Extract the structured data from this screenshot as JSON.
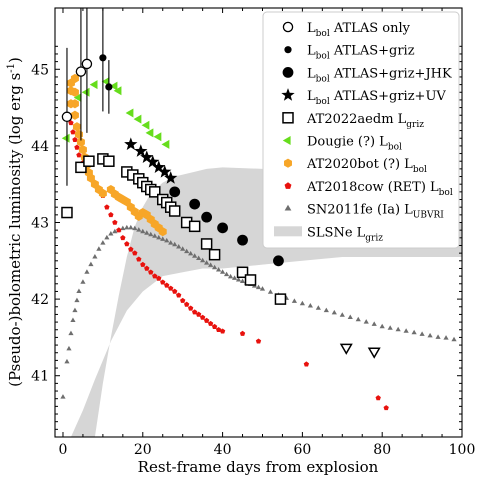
{
  "chart_data": {
    "type": "scatter",
    "xlabel": "Rest-frame days from explosion",
    "ylabel": "(Pseudo-)bolometric luminosity (log erg s⁻¹)",
    "xlim": [
      -2,
      100
    ],
    "ylim": [
      40.2,
      45.8
    ],
    "xticks": [
      0,
      20,
      40,
      60,
      80,
      100
    ],
    "yticks": [
      41,
      42,
      43,
      44,
      45
    ],
    "legend_position": "top-right",
    "band": {
      "name": "SLSNe L_griz",
      "color": "#d6d6d6",
      "lower": [
        [
          2,
          40.2
        ],
        [
          5,
          40.55
        ],
        [
          8,
          40.95
        ],
        [
          12,
          41.45
        ],
        [
          16,
          41.85
        ],
        [
          20,
          42.1
        ],
        [
          25,
          42.3
        ],
        [
          30,
          42.35
        ],
        [
          35,
          42.4
        ],
        [
          40,
          42.4
        ],
        [
          50,
          42.45
        ],
        [
          60,
          42.5
        ],
        [
          70,
          42.55
        ],
        [
          80,
          42.55
        ],
        [
          90,
          42.55
        ],
        [
          100,
          42.55
        ]
      ],
      "upper": [
        [
          8,
          40.2
        ],
        [
          10,
          40.9
        ],
        [
          12,
          41.5
        ],
        [
          14,
          42.05
        ],
        [
          16,
          42.55
        ],
        [
          18,
          42.95
        ],
        [
          20,
          43.2
        ],
        [
          22,
          43.38
        ],
        [
          25,
          43.52
        ],
        [
          28,
          43.6
        ],
        [
          32,
          43.65
        ],
        [
          36,
          43.7
        ],
        [
          40,
          43.72
        ],
        [
          50,
          43.7
        ],
        [
          60,
          43.6
        ],
        [
          70,
          43.45
        ],
        [
          80,
          43.3
        ],
        [
          90,
          43.15
        ],
        [
          100,
          43.0
        ]
      ]
    },
    "series": [
      {
        "name": "ATLAS only",
        "marker": "open-circle",
        "color": "#000000",
        "points": [
          [
            1,
            44.38
          ],
          [
            4.5,
            44.97
          ],
          [
            6,
            45.07
          ]
        ],
        "errors": [
          [
            0.9
          ],
          [
            0.9
          ],
          [
            0.9
          ]
        ]
      },
      {
        "name": "ATLAS+griz",
        "marker": "filled-circle-small",
        "color": "#000000",
        "points": [
          [
            10,
            45.15
          ],
          [
            11.5,
            44.77
          ]
        ],
        "errors": [
          [
            0.7
          ],
          [
            0.35
          ]
        ]
      },
      {
        "name": "ATLAS+griz+JHK",
        "marker": "filled-circle-large",
        "color": "#000000",
        "points": [
          [
            28,
            43.4
          ],
          [
            33,
            43.24
          ],
          [
            36,
            43.07
          ],
          [
            40,
            42.93
          ],
          [
            45,
            42.77
          ],
          [
            54,
            42.5
          ]
        ]
      },
      {
        "name": "ATLAS+griz+UV",
        "marker": "star",
        "color": "#000000",
        "points": [
          [
            17,
            44.02
          ],
          [
            19.5,
            43.93
          ],
          [
            21,
            43.85
          ],
          [
            22.5,
            43.79
          ],
          [
            24,
            43.72
          ],
          [
            25.5,
            43.66
          ],
          [
            27,
            43.58
          ]
        ]
      },
      {
        "name": "AT2022aedm L_griz",
        "marker": "open-square",
        "color": "#000000",
        "points": [
          [
            1,
            43.13
          ],
          [
            4.5,
            43.72
          ],
          [
            6.5,
            43.8
          ],
          [
            10,
            43.83
          ],
          [
            11.5,
            43.8
          ],
          [
            16,
            43.66
          ],
          [
            17.5,
            43.62
          ],
          [
            19,
            43.57
          ],
          [
            20,
            43.52
          ],
          [
            21,
            43.47
          ],
          [
            22,
            43.43
          ],
          [
            23,
            43.4
          ],
          [
            25,
            43.3
          ],
          [
            26,
            43.26
          ],
          [
            27,
            43.2
          ],
          [
            28,
            43.15
          ],
          [
            31,
            43.0
          ],
          [
            33,
            42.95
          ],
          [
            36,
            42.72
          ],
          [
            38,
            42.58
          ],
          [
            45,
            42.35
          ],
          [
            47,
            42.25
          ],
          [
            54.5,
            42.0
          ]
        ],
        "upper_limits": [
          [
            71,
            41.37
          ],
          [
            78,
            41.32
          ]
        ]
      },
      {
        "name": "Dougie (?) L_bol",
        "marker": "triangle-left",
        "color": "#66dd1c",
        "points": [
          [
            1,
            44.1
          ],
          [
            4,
            44.63
          ],
          [
            6,
            44.7
          ],
          [
            8,
            44.8
          ],
          [
            11,
            44.84
          ],
          [
            13,
            44.78
          ],
          [
            14,
            44.72
          ],
          [
            17,
            44.43
          ],
          [
            19,
            44.35
          ],
          [
            21,
            44.27
          ],
          [
            22,
            44.17
          ],
          [
            24,
            44.12
          ],
          [
            26,
            44.02
          ]
        ]
      },
      {
        "name": "AT2020bot (?) L_bol",
        "marker": "hexagon",
        "color": "#f7a628",
        "points": [
          [
            2,
            44.82
          ],
          [
            2,
            44.72
          ],
          [
            3,
            44.88
          ],
          [
            3,
            44.7
          ],
          [
            3,
            44.55
          ],
          [
            2,
            44.55
          ],
          [
            3,
            44.4
          ],
          [
            3.5,
            44.25
          ],
          [
            4,
            44.15
          ],
          [
            4.5,
            44.05
          ],
          [
            5,
            43.95
          ],
          [
            5.5,
            43.85
          ],
          [
            6,
            43.75
          ],
          [
            6.5,
            43.65
          ],
          [
            7,
            43.58
          ],
          [
            8,
            43.5
          ],
          [
            9,
            43.43
          ],
          [
            10,
            43.38
          ],
          [
            12,
            43.43
          ],
          [
            13,
            43.37
          ],
          [
            14,
            43.33
          ],
          [
            15,
            43.3
          ],
          [
            16,
            43.27
          ],
          [
            17,
            43.2
          ],
          [
            18,
            43.14
          ],
          [
            19,
            43.08
          ],
          [
            20,
            43.13
          ],
          [
            21,
            43.1
          ],
          [
            22,
            43.04
          ],
          [
            23,
            42.98
          ],
          [
            24,
            42.93
          ],
          [
            25,
            42.88
          ]
        ]
      },
      {
        "name": "AT2018cow (RET) L_bol",
        "marker": "pentagon",
        "color": "#e8120e",
        "points": [
          [
            1.5,
            44.4
          ],
          [
            2,
            44.3
          ],
          [
            2.5,
            44.18
          ],
          [
            3,
            44.08
          ],
          [
            3.5,
            43.98
          ],
          [
            4,
            43.88
          ],
          [
            5,
            43.78
          ],
          [
            6,
            43.68
          ],
          [
            7,
            43.6
          ],
          [
            8,
            43.5
          ],
          [
            9,
            43.42
          ],
          [
            10,
            43.35
          ],
          [
            11,
            43.2
          ],
          [
            12,
            43.1
          ],
          [
            13,
            43.0
          ],
          [
            14,
            42.9
          ],
          [
            15,
            42.8
          ],
          [
            16,
            42.72
          ],
          [
            17,
            42.65
          ],
          [
            18,
            42.6
          ],
          [
            19,
            42.52
          ],
          [
            20,
            42.45
          ],
          [
            21,
            42.4
          ],
          [
            22,
            42.35
          ],
          [
            23,
            42.3
          ],
          [
            24,
            42.27
          ],
          [
            25,
            42.22
          ],
          [
            26,
            42.18
          ],
          [
            27,
            42.14
          ],
          [
            28,
            42.1
          ],
          [
            29,
            42.05
          ],
          [
            30,
            41.98
          ],
          [
            31,
            41.93
          ],
          [
            32,
            41.88
          ],
          [
            33,
            41.83
          ],
          [
            34,
            41.8
          ],
          [
            35,
            41.76
          ],
          [
            36,
            41.72
          ],
          [
            37,
            41.68
          ],
          [
            38,
            41.64
          ],
          [
            39,
            41.6
          ],
          [
            40,
            41.58
          ],
          [
            45,
            41.55
          ],
          [
            49,
            41.45
          ],
          [
            61,
            41.15
          ],
          [
            79,
            40.71
          ],
          [
            81,
            40.58
          ]
        ]
      },
      {
        "name": "SN2011fe (Ia) L_UBVRI",
        "marker": "triangle-up",
        "color": "#6e6e6e",
        "points": [
          [
            0,
            40.72
          ],
          [
            1,
            41.18
          ],
          [
            1.5,
            41.35
          ],
          [
            2,
            41.55
          ],
          [
            2.5,
            41.72
          ],
          [
            3,
            41.85
          ],
          [
            3.5,
            41.98
          ],
          [
            4,
            42.1
          ],
          [
            5,
            42.22
          ],
          [
            6,
            42.35
          ],
          [
            7,
            42.45
          ],
          [
            8,
            42.55
          ],
          [
            9,
            42.65
          ],
          [
            10,
            42.73
          ],
          [
            11,
            42.8
          ],
          [
            12,
            42.85
          ],
          [
            13,
            42.88
          ],
          [
            14,
            42.9
          ],
          [
            15,
            42.92
          ],
          [
            16,
            42.93
          ],
          [
            17,
            42.93
          ],
          [
            18,
            42.92
          ],
          [
            19,
            42.9
          ],
          [
            20,
            42.88
          ],
          [
            21,
            42.86
          ],
          [
            22,
            42.84
          ],
          [
            23,
            42.82
          ],
          [
            24,
            42.8
          ],
          [
            25,
            42.78
          ],
          [
            26,
            42.76
          ],
          [
            27,
            42.73
          ],
          [
            28,
            42.71
          ],
          [
            29,
            42.68
          ],
          [
            30,
            42.65
          ],
          [
            31,
            42.62
          ],
          [
            32,
            42.59
          ],
          [
            33,
            42.56
          ],
          [
            34,
            42.53
          ],
          [
            35,
            42.5
          ],
          [
            36,
            42.47
          ],
          [
            37,
            42.44
          ],
          [
            38,
            42.41
          ],
          [
            39,
            42.38
          ],
          [
            40,
            42.35
          ],
          [
            41,
            42.32
          ],
          [
            42,
            42.29
          ],
          [
            43,
            42.27
          ],
          [
            44,
            42.25
          ],
          [
            45,
            42.23
          ],
          [
            46,
            42.21
          ],
          [
            47,
            42.19
          ],
          [
            48,
            42.17
          ],
          [
            49,
            42.15
          ],
          [
            50,
            42.13
          ],
          [
            52,
            42.09
          ],
          [
            54,
            42.05
          ],
          [
            56,
            42.01
          ],
          [
            58,
            41.97
          ],
          [
            60,
            41.94
          ],
          [
            62,
            41.91
          ],
          [
            64,
            41.88
          ],
          [
            66,
            41.85
          ],
          [
            68,
            41.82
          ],
          [
            70,
            41.79
          ],
          [
            72,
            41.76
          ],
          [
            74,
            41.73
          ],
          [
            76,
            41.7
          ],
          [
            78,
            41.67
          ],
          [
            80,
            41.64
          ],
          [
            82,
            41.62
          ],
          [
            84,
            41.6
          ],
          [
            86,
            41.58
          ],
          [
            88,
            41.56
          ],
          [
            90,
            41.54
          ],
          [
            92,
            41.52
          ],
          [
            94,
            41.5
          ],
          [
            96,
            41.49
          ],
          [
            98,
            41.47
          ]
        ]
      }
    ]
  },
  "legend": {
    "items": [
      {
        "key": "atlas-only",
        "sym": "open-circle",
        "color": "#000000",
        "main": "L",
        "sub": "bol",
        "tail": " ATLAS only"
      },
      {
        "key": "atlas-griz",
        "sym": "filled-circle-small",
        "color": "#000000",
        "main": "L",
        "sub": "bol",
        "tail": " ATLAS+griz"
      },
      {
        "key": "atlas-griz-jhk",
        "sym": "filled-circle-large",
        "color": "#000000",
        "main": "L",
        "sub": "bol",
        "tail": " ATLAS+griz+JHK"
      },
      {
        "key": "atlas-griz-uv",
        "sym": "star",
        "color": "#000000",
        "main": "L",
        "sub": "bol",
        "tail": " ATLAS+griz+UV"
      },
      {
        "key": "at2022aedm",
        "sym": "open-square",
        "color": "#000000",
        "main": "AT2022aedm L",
        "sub": "griz",
        "tail": ""
      },
      {
        "key": "dougie",
        "sym": "triangle-left",
        "color": "#66dd1c",
        "main": "Dougie (?) L",
        "sub": "bol",
        "tail": ""
      },
      {
        "key": "at2020bot",
        "sym": "hexagon",
        "color": "#f7a628",
        "main": "AT2020bot (?) L",
        "sub": "bol",
        "tail": ""
      },
      {
        "key": "at2018cow",
        "sym": "pentagon",
        "color": "#e8120e",
        "main": "AT2018cow (RET) L",
        "sub": "bol",
        "tail": ""
      },
      {
        "key": "sn2011fe",
        "sym": "triangle-up",
        "color": "#6e6e6e",
        "main": "SN2011fe (Ia) L",
        "sub": "UBVRI",
        "tail": ""
      },
      {
        "key": "slsne",
        "sym": "band",
        "color": "#d6d6d6",
        "main": "SLSNe L",
        "sub": "griz",
        "tail": ""
      }
    ]
  }
}
